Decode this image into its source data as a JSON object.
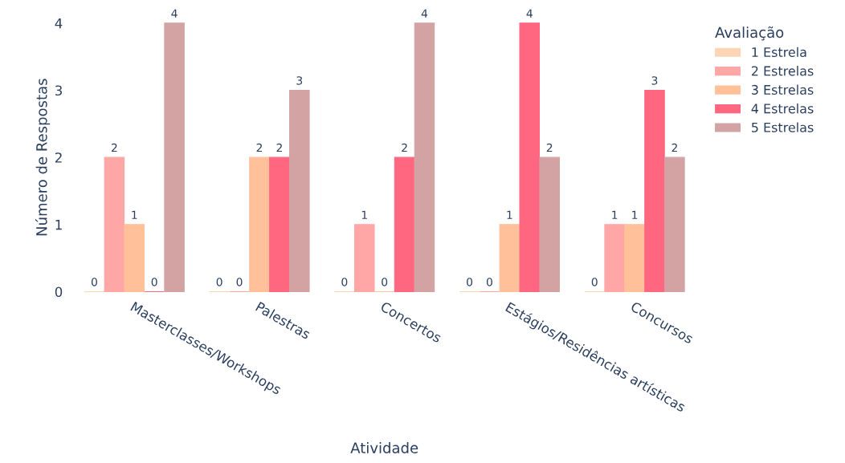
{
  "chart_data": {
    "type": "bar",
    "xlabel": "Atividade",
    "ylabel": "Número de Respostas",
    "legend_title": "Avaliação",
    "categories": [
      "Masterclasses/Workshops",
      "Palestras",
      "Concertos",
      "Estágios/Residências artísticas",
      "Concursos"
    ],
    "series": [
      {
        "name": "1 Estrela",
        "color": "#fdd5b4",
        "values": [
          0,
          0,
          0,
          0,
          0
        ]
      },
      {
        "name": "2 Estrelas",
        "color": "#ffa6a6",
        "values": [
          2,
          0,
          1,
          0,
          1
        ]
      },
      {
        "name": "3 Estrelas",
        "color": "#ffc09a",
        "values": [
          1,
          2,
          0,
          1,
          1
        ]
      },
      {
        "name": "4 Estrelas",
        "color": "#ff6680",
        "values": [
          0,
          2,
          2,
          4,
          3
        ]
      },
      {
        "name": "5 Estrelas",
        "color": "#d3a3a3",
        "values": [
          4,
          3,
          4,
          2,
          2
        ]
      }
    ],
    "ylim": [
      0,
      4
    ],
    "yticks": [
      0,
      1,
      2,
      3,
      4
    ],
    "data_labels": true,
    "grid": false,
    "legend": "top right"
  }
}
